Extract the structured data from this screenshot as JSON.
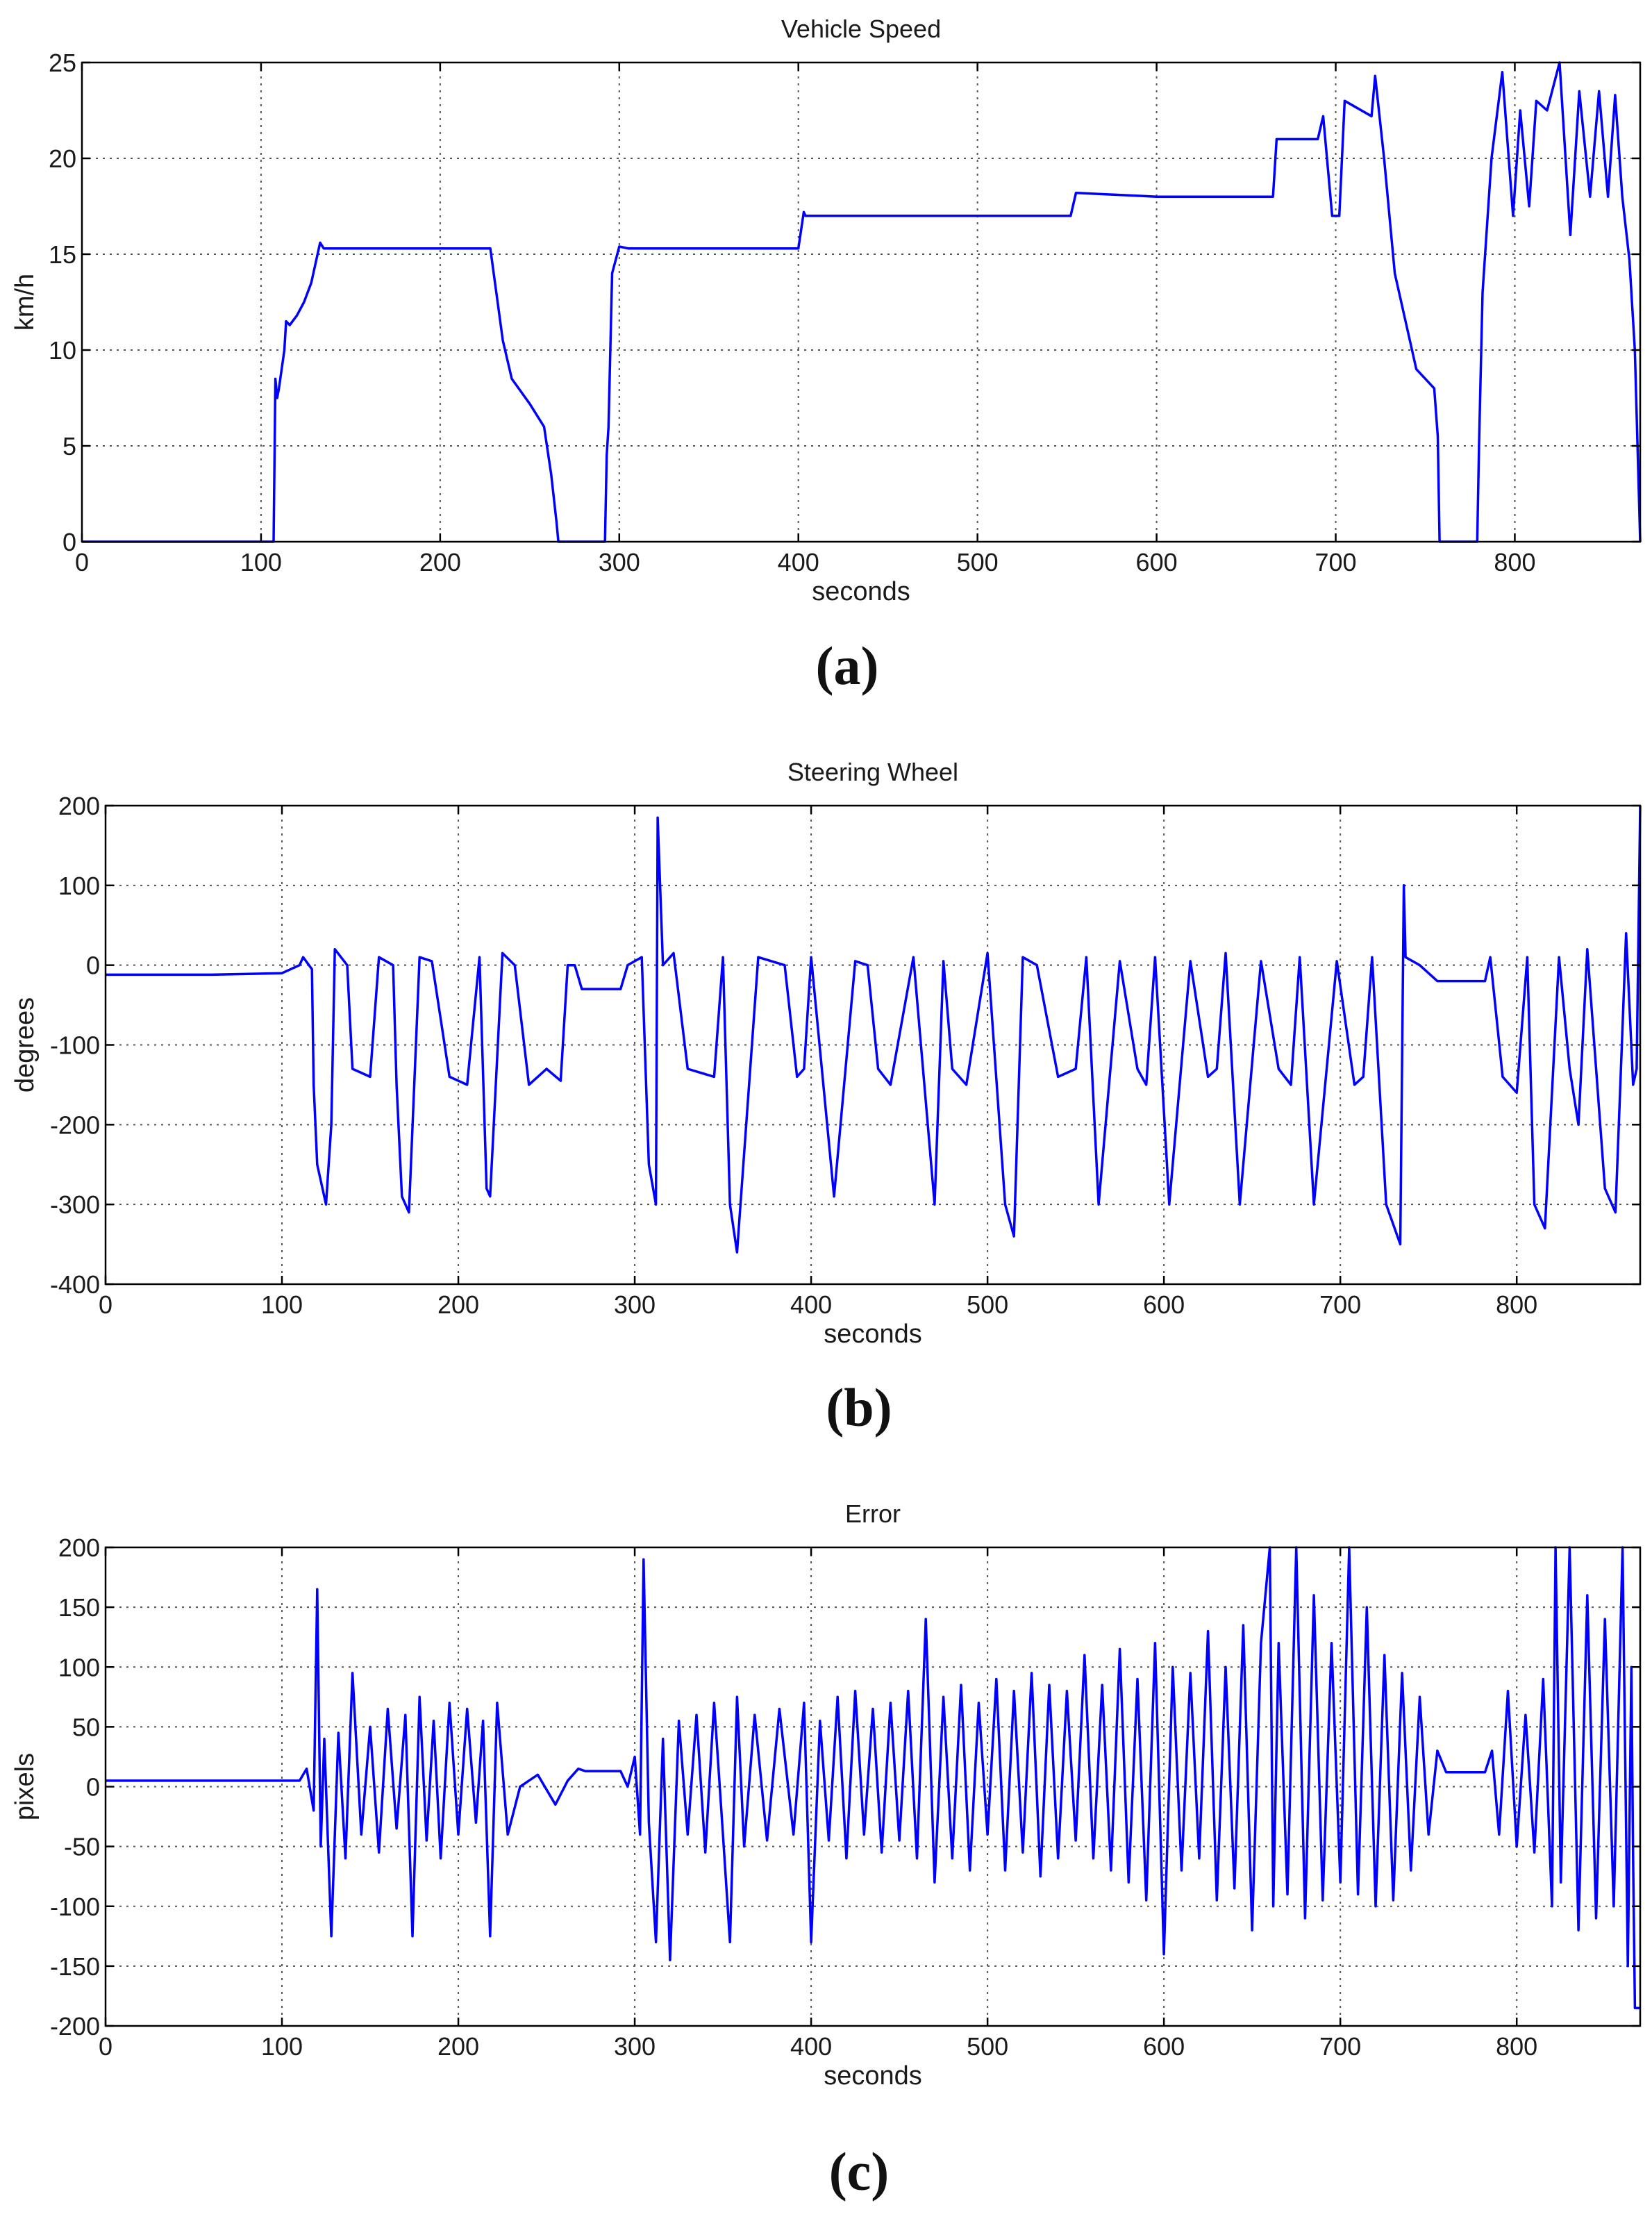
{
  "chart_data": [
    {
      "type": "line",
      "panel_label": "(a)",
      "title": "Vehicle Speed",
      "xlabel": "seconds",
      "ylabel": "km/h",
      "xlim": [
        0,
        870
      ],
      "ylim": [
        0,
        25
      ],
      "xticks": [
        0,
        100,
        200,
        300,
        400,
        500,
        600,
        700,
        800
      ],
      "yticks": [
        0,
        5,
        10,
        15,
        20,
        25
      ],
      "grid": true,
      "color": "#0000ff",
      "series": [
        {
          "x": [
            0,
            106,
            107,
            108,
            109,
            110,
            113,
            114,
            116,
            120,
            124,
            128,
            133,
            135,
            160,
            200,
            228,
            235,
            240,
            250,
            258,
            262,
            265,
            266,
            292,
            293,
            294,
            296,
            300,
            305,
            350,
            400,
            403,
            404,
            450,
            500,
            552,
            555,
            600,
            665,
            667,
            668,
            690,
            693,
            698,
            702,
            705,
            720,
            722,
            727,
            733,
            745,
            755,
            757,
            758,
            758.5,
            779,
            780,
            782,
            787,
            793,
            799,
            803,
            808,
            812,
            818,
            825,
            831,
            836,
            842,
            847,
            852,
            856,
            860,
            864,
            867,
            870
          ],
          "y": [
            0,
            0,
            0,
            8.5,
            7.5,
            8,
            10,
            11.5,
            11.3,
            11.8,
            12.5,
            13.5,
            15.6,
            15.3,
            15.3,
            15.3,
            15.3,
            10.5,
            8.5,
            7.2,
            6,
            3.5,
            1,
            0,
            0,
            4.5,
            6,
            14,
            15.4,
            15.3,
            15.3,
            15.3,
            17.2,
            17,
            17,
            17,
            17,
            18.2,
            18,
            18,
            21,
            21,
            21,
            22.2,
            17,
            17,
            23,
            22.2,
            24.3,
            20,
            14,
            9,
            8,
            5.5,
            0,
            0,
            0,
            5,
            13,
            20,
            24.5,
            17,
            22.5,
            17.5,
            23,
            22.5,
            25,
            16,
            23.5,
            18,
            23.5,
            18,
            23.3,
            18,
            14.7,
            10,
            0
          ]
        }
      ]
    },
    {
      "type": "line",
      "panel_label": "(b)",
      "title": "Steering Wheel",
      "xlabel": "seconds",
      "ylabel": "degrees",
      "xlim": [
        0,
        870
      ],
      "ylim": [
        -400,
        200
      ],
      "xticks": [
        0,
        100,
        200,
        300,
        400,
        500,
        600,
        700,
        800
      ],
      "yticks": [
        -400,
        -300,
        -200,
        -100,
        0,
        100,
        200
      ],
      "grid": true,
      "color": "#0000ff",
      "series": [
        {
          "x": [
            0,
            60,
            100,
            110,
            112,
            117,
            118,
            120,
            125,
            128,
            130,
            137,
            140,
            150,
            155,
            163,
            165,
            168,
            172,
            178,
            185,
            195,
            205,
            212,
            216,
            218,
            225,
            232,
            240,
            250,
            258,
            262,
            266,
            270,
            292,
            296,
            300,
            304,
            308,
            312,
            313,
            316,
            322,
            330,
            345,
            350,
            354,
            358,
            370,
            385,
            392,
            396,
            400,
            413,
            425,
            432,
            438,
            445,
            458,
            470,
            475,
            480,
            488,
            500,
            510,
            515,
            520,
            528,
            540,
            550,
            556,
            563,
            575,
            585,
            590,
            595,
            603,
            615,
            625,
            630,
            635,
            643,
            655,
            665,
            672,
            677,
            685,
            698,
            708,
            713,
            718,
            726,
            734,
            736,
            737,
            745,
            755,
            760,
            782,
            785,
            792,
            800,
            806,
            810,
            816,
            824,
            830,
            835,
            840,
            850,
            856,
            862,
            866,
            868,
            870
          ],
          "y": [
            -12,
            -12,
            -10,
            0,
            10,
            -5,
            -150,
            -250,
            -300,
            -200,
            20,
            0,
            -130,
            -140,
            10,
            0,
            -150,
            -290,
            -310,
            10,
            5,
            -140,
            -150,
            10,
            -280,
            -290,
            15,
            0,
            -150,
            -130,
            -145,
            0,
            0,
            -30,
            -30,
            0,
            5,
            10,
            -250,
            -300,
            185,
            0,
            15,
            -130,
            -140,
            10,
            -300,
            -360,
            10,
            0,
            -140,
            -130,
            10,
            -290,
            5,
            0,
            -130,
            -150,
            10,
            -300,
            5,
            -130,
            -150,
            15,
            -300,
            -340,
            10,
            0,
            -140,
            -130,
            10,
            -300,
            5,
            -130,
            -150,
            10,
            -300,
            5,
            -140,
            -130,
            15,
            -300,
            5,
            -130,
            -150,
            10,
            -300,
            5,
            -150,
            -140,
            10,
            -300,
            -350,
            100,
            10,
            0,
            -20,
            -20,
            -20,
            10,
            -140,
            -160,
            10,
            -300,
            -330,
            10,
            -130,
            -200,
            20,
            -280,
            -310,
            40,
            -150,
            -130,
            200
          ]
        }
      ]
    },
    {
      "type": "line",
      "panel_label": "(c)",
      "title": "Error",
      "xlabel": "seconds",
      "ylabel": "pixels",
      "xlim": [
        0,
        870
      ],
      "ylim": [
        -200,
        200
      ],
      "xticks": [
        0,
        100,
        200,
        300,
        400,
        500,
        600,
        700,
        800
      ],
      "yticks": [
        -200,
        -150,
        -100,
        -50,
        0,
        50,
        100,
        150,
        200
      ],
      "grid": true,
      "color": "#0000ff",
      "series": [
        {
          "x": [
            0,
            108,
            110,
            114,
            118,
            120,
            122,
            124,
            128,
            132,
            136,
            140,
            145,
            150,
            155,
            160,
            165,
            170,
            174,
            178,
            182,
            186,
            190,
            195,
            200,
            205,
            210,
            214,
            218,
            222,
            228,
            235,
            245,
            255,
            262,
            268,
            272,
            292,
            296,
            300,
            303,
            305,
            308,
            312,
            316,
            320,
            325,
            330,
            335,
            340,
            345,
            350,
            354,
            358,
            362,
            368,
            375,
            382,
            390,
            396,
            400,
            405,
            410,
            415,
            420,
            425,
            430,
            435,
            440,
            445,
            450,
            455,
            460,
            465,
            470,
            475,
            480,
            485,
            490,
            495,
            500,
            505,
            510,
            515,
            520,
            525,
            530,
            535,
            540,
            545,
            550,
            555,
            560,
            565,
            570,
            575,
            580,
            585,
            590,
            595,
            600,
            605,
            610,
            615,
            620,
            625,
            630,
            635,
            640,
            645,
            650,
            655,
            660,
            662,
            665,
            670,
            675,
            680,
            685,
            690,
            695,
            700,
            705,
            710,
            715,
            720,
            725,
            730,
            735,
            740,
            745,
            750,
            755,
            760,
            782,
            786,
            790,
            795,
            800,
            805,
            810,
            815,
            820,
            822,
            825,
            830,
            835,
            840,
            845,
            850,
            855,
            860,
            863,
            865,
            866,
            867,
            870
          ],
          "y": [
            5,
            5,
            5,
            15,
            -20,
            165,
            -50,
            40,
            -125,
            45,
            -60,
            95,
            -40,
            50,
            -55,
            65,
            -35,
            60,
            -125,
            75,
            -45,
            55,
            -60,
            70,
            -40,
            65,
            -30,
            55,
            -125,
            70,
            -40,
            0,
            10,
            -15,
            5,
            15,
            13,
            13,
            0,
            25,
            -40,
            190,
            -30,
            -130,
            40,
            -145,
            55,
            -40,
            60,
            -55,
            70,
            -40,
            -130,
            75,
            -50,
            60,
            -45,
            65,
            -40,
            70,
            -130,
            55,
            -45,
            75,
            -60,
            80,
            -40,
            65,
            -55,
            70,
            -45,
            80,
            -60,
            140,
            -80,
            75,
            -60,
            85,
            -70,
            70,
            -40,
            90,
            -70,
            80,
            -55,
            95,
            -75,
            85,
            -60,
            80,
            -45,
            110,
            -60,
            85,
            -70,
            115,
            -80,
            90,
            -95,
            120,
            -140,
            100,
            -70,
            95,
            -60,
            130,
            -95,
            100,
            -85,
            135,
            -120,
            120,
            200,
            -100,
            120,
            -90,
            200,
            -110,
            160,
            -95,
            120,
            -80,
            200,
            -90,
            150,
            -100,
            110,
            -95,
            95,
            -70,
            75,
            -40,
            30,
            12,
            12,
            30,
            -40,
            80,
            -50,
            60,
            -55,
            90,
            -100,
            200,
            -80,
            200,
            -120,
            160,
            -110,
            140,
            -100,
            200,
            -150,
            100,
            -60,
            -185,
            -185
          ]
        }
      ]
    }
  ]
}
